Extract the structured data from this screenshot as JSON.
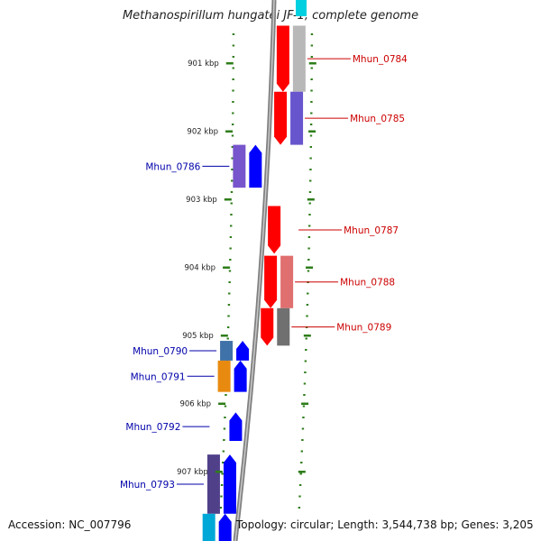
{
  "title": "Methanospirillum hungatei JF-1, complete genome",
  "footer": {
    "accession": "Accession: NC_007796",
    "info": "Topology: circular; Length: 3,544,738 bp; Genes: 3,205"
  },
  "scale": {
    "ticks": [
      {
        "label": "901 kbp",
        "kbp": 901
      },
      {
        "label": "902 kbp",
        "kbp": 902
      },
      {
        "label": "903 kbp",
        "kbp": 903
      },
      {
        "label": "904 kbp",
        "kbp": 904
      },
      {
        "label": "905 kbp",
        "kbp": 905
      },
      {
        "label": "906 kbp",
        "kbp": 906
      },
      {
        "label": "907 kbp",
        "kbp": 907
      }
    ]
  },
  "colors": {
    "forward_label": "#cc0000",
    "reverse_label": "#0000aa",
    "backbone": "#808080",
    "tick": "#2e7d1a"
  },
  "genes": [
    {
      "label": "Mhun_0784",
      "strand": "forward",
      "start_kbp": 900.45,
      "end_kbp": 901.42,
      "color": "#ff0000",
      "feature_color": "#b8b8b8"
    },
    {
      "label": "Mhun_0785",
      "strand": "forward",
      "start_kbp": 901.42,
      "end_kbp": 902.2,
      "color": "#ff0000",
      "feature_color": "#6655cc"
    },
    {
      "label": "Mhun_0786",
      "strand": "reverse",
      "start_kbp": 902.2,
      "end_kbp": 902.83,
      "color": "#0000ff",
      "feature_color": "#7755cc"
    },
    {
      "label": "Mhun_0787",
      "strand": "forward",
      "start_kbp": 903.1,
      "end_kbp": 903.8,
      "color": "#ff0000",
      "feature_color": null
    },
    {
      "label": "Mhun_0788",
      "strand": "forward",
      "start_kbp": 903.83,
      "end_kbp": 904.6,
      "color": "#ff0000",
      "feature_color": "#e06f6f"
    },
    {
      "label": "Mhun_0789",
      "strand": "forward",
      "start_kbp": 904.6,
      "end_kbp": 905.15,
      "color": "#ff0000",
      "feature_color": "#707070"
    },
    {
      "label": "Mhun_0790",
      "strand": "reverse",
      "start_kbp": 905.08,
      "end_kbp": 905.37,
      "color": "#0000ff",
      "feature_color": "#3f72a8"
    },
    {
      "label": "Mhun_0791",
      "strand": "reverse",
      "start_kbp": 905.37,
      "end_kbp": 905.83,
      "color": "#0000ff",
      "feature_color": "#e88a10"
    },
    {
      "label": "Mhun_0792",
      "strand": "reverse",
      "start_kbp": 906.13,
      "end_kbp": 906.55,
      "color": "#0000ff",
      "feature_color": null
    },
    {
      "label": "Mhun_0793",
      "strand": "reverse",
      "start_kbp": 906.75,
      "end_kbp": 907.62,
      "color": "#0000ff",
      "feature_color": "#50408a"
    },
    {
      "label": "",
      "strand": "reverse",
      "start_kbp": 907.62,
      "end_kbp": 908.2,
      "color": "#0000ff",
      "feature_color": "#00a8d8"
    }
  ],
  "edge_top_feature_color": "#00d0e0"
}
